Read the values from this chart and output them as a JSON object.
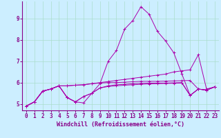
{
  "bg_color": "#cceeff",
  "line_color": "#aa00aa",
  "grid_color": "#aaddcc",
  "axis_color": "#880088",
  "xlim": [
    -0.5,
    23.5
  ],
  "ylim": [
    4.7,
    9.8
  ],
  "xticks": [
    0,
    1,
    2,
    3,
    4,
    5,
    6,
    7,
    8,
    9,
    10,
    11,
    12,
    13,
    14,
    15,
    16,
    17,
    18,
    19,
    20,
    21,
    22,
    23
  ],
  "yticks": [
    5,
    6,
    7,
    8,
    9
  ],
  "xlabel": "Windchill (Refroidissement éolien,°C)",
  "tick_fontsize": 5.5,
  "xlabel_fontsize": 6.0,
  "lines": [
    [
      4.9,
      5.1,
      5.6,
      5.7,
      5.85,
      5.3,
      5.1,
      5.05,
      5.5,
      5.95,
      7.0,
      7.5,
      8.5,
      8.9,
      9.55,
      9.2,
      8.4,
      7.95,
      7.4,
      6.4,
      5.4,
      5.7,
      5.65,
      5.8
    ],
    [
      4.9,
      5.1,
      5.6,
      5.7,
      5.85,
      5.85,
      5.88,
      5.9,
      5.95,
      6.0,
      6.05,
      6.1,
      6.15,
      6.2,
      6.25,
      6.3,
      6.35,
      6.4,
      6.5,
      6.55,
      6.6,
      7.3,
      5.7,
      5.8
    ],
    [
      4.9,
      5.1,
      5.6,
      5.7,
      5.85,
      5.85,
      5.88,
      5.9,
      5.95,
      5.98,
      6.0,
      6.0,
      6.02,
      6.04,
      6.06,
      6.06,
      6.06,
      6.07,
      6.08,
      6.09,
      6.1,
      5.7,
      5.65,
      5.8
    ],
    [
      4.9,
      5.1,
      5.6,
      5.7,
      5.85,
      5.3,
      5.1,
      5.35,
      5.5,
      5.75,
      5.85,
      5.9,
      5.92,
      5.95,
      5.97,
      5.98,
      5.98,
      5.98,
      5.99,
      6.0,
      5.4,
      5.7,
      5.65,
      5.8
    ],
    [
      4.9,
      5.1,
      5.6,
      5.7,
      5.85,
      5.3,
      5.1,
      5.35,
      5.5,
      5.75,
      5.82,
      5.85,
      5.88,
      5.9,
      5.92,
      5.94,
      5.95,
      5.96,
      5.97,
      5.98,
      5.4,
      5.7,
      5.65,
      5.8
    ]
  ]
}
